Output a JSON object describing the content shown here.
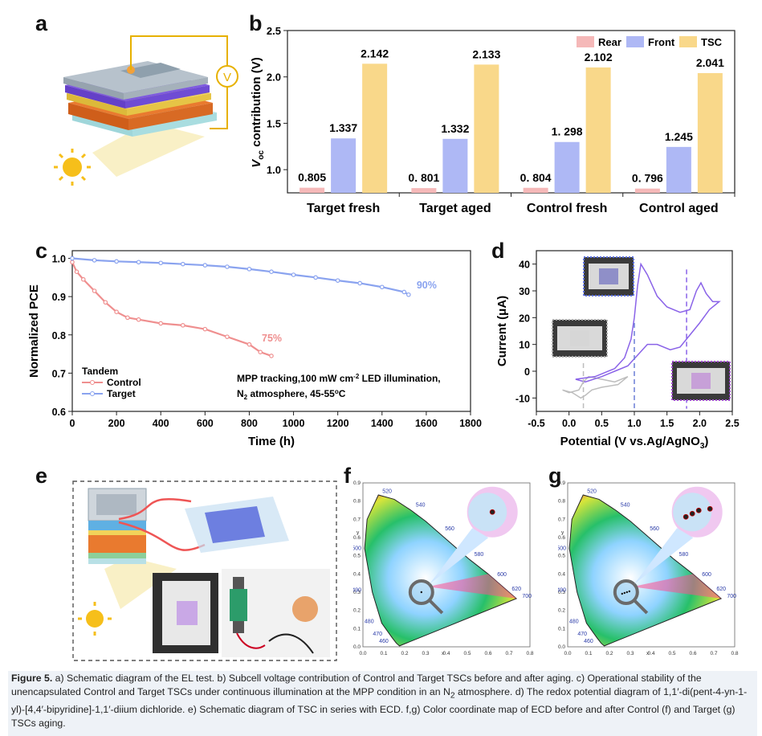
{
  "panel_labels": {
    "a": "a",
    "b": "b",
    "c": "c",
    "d": "d",
    "e": "e",
    "f": "f",
    "g": "g"
  },
  "colors": {
    "rear": "#f5b8b8",
    "front": "#aeb8f5",
    "tsc": "#f9d88a",
    "control": "#ef8f8f",
    "target": "#8aa3ef",
    "cv_gray": "#bdbdbd",
    "cv_purple": "#8a63e8"
  },
  "panel_a": {
    "voltmeter_label": "V"
  },
  "chart_data": [
    {
      "id": "b",
      "type": "bar",
      "categories": [
        "Target fresh",
        "Target aged",
        "Control fresh",
        "Control aged"
      ],
      "series": [
        {
          "name": "Rear",
          "values": [
            0.805,
            0.801,
            0.804,
            0.796
          ],
          "labels": [
            "0.805",
            "0. 801",
            "0. 804",
            "0. 796"
          ]
        },
        {
          "name": "Front",
          "values": [
            1.337,
            1.332,
            1.298,
            1.245
          ],
          "labels": [
            "1.337",
            "1.332",
            "1. 298",
            "1.245"
          ]
        },
        {
          "name": "TSC",
          "values": [
            2.142,
            2.133,
            2.102,
            2.041
          ],
          "labels": [
            "2.142",
            "2.133",
            "2.102",
            "2.041"
          ]
        }
      ],
      "ylabel": "V",
      "ylabel_sub": "oc",
      "ylabel_rest": " contribution (V)",
      "ylim": [
        0.75,
        2.5
      ],
      "yticks": [
        "1.0",
        "1.5",
        "2.0",
        "2.5"
      ],
      "legend": "top-right"
    },
    {
      "id": "c",
      "type": "line",
      "xlabel": "Time (h)",
      "ylabel": "Normalized PCE",
      "xlim": [
        0,
        1800
      ],
      "ylim": [
        0.6,
        1.02
      ],
      "xticks": [
        "0",
        "200",
        "400",
        "600",
        "800",
        "1000",
        "1200",
        "1400",
        "1600",
        "1800"
      ],
      "yticks": [
        "0.6",
        "0.7",
        "0.8",
        "0.9",
        "1.0"
      ],
      "legend_title": "Tandem",
      "annotation_line1": "MPP tracking,100 mW cm",
      "annotation_sup": "-2",
      "annotation_line1b": " LED illumination,",
      "annotation_line2": "N",
      "annotation_line2sub": "2",
      "annotation_line2b": " atmosphere, 45-55",
      "annotation_deg": "o",
      "annotation_line2c": "C",
      "series": [
        {
          "name": "Control",
          "end_label": "75%",
          "x": [
            0,
            20,
            50,
            100,
            150,
            200,
            250,
            300,
            400,
            500,
            600,
            700,
            800,
            850,
            900
          ],
          "y": [
            0.99,
            0.965,
            0.945,
            0.915,
            0.885,
            0.86,
            0.845,
            0.84,
            0.83,
            0.825,
            0.815,
            0.795,
            0.775,
            0.755,
            0.745
          ]
        },
        {
          "name": "Target",
          "end_label": "90%",
          "x": [
            0,
            100,
            200,
            300,
            400,
            500,
            600,
            700,
            800,
            900,
            1000,
            1100,
            1200,
            1300,
            1400,
            1500,
            1520
          ],
          "y": [
            1.0,
            0.995,
            0.992,
            0.99,
            0.988,
            0.985,
            0.982,
            0.978,
            0.972,
            0.965,
            0.957,
            0.95,
            0.942,
            0.935,
            0.925,
            0.912,
            0.905
          ]
        }
      ]
    },
    {
      "id": "d",
      "type": "line",
      "xlabel": "Potential (V vs.Ag/AgNO",
      "xlabel_sub": "3",
      "xlabel_end": ")",
      "ylabel": "Current (μA)",
      "xlim": [
        -0.5,
        2.5
      ],
      "ylim": [
        -15,
        45
      ],
      "xticks": [
        "-0.5",
        "0.0",
        "0.5",
        "1.0",
        "1.5",
        "2.0",
        "2.5"
      ],
      "yticks": [
        "-10",
        "0",
        "10",
        "20",
        "30",
        "40"
      ],
      "dashed_lines_x": [
        0.22,
        1.0,
        1.8
      ]
    }
  ],
  "cie": {
    "x_ticks": [
      "0.0",
      "0.1",
      "0.2",
      "0.3",
      "0.4",
      "0.5",
      "0.6",
      "0.7",
      "0.8"
    ],
    "y_ticks": [
      "0.0",
      "0.1",
      "0.2",
      "0.3",
      "0.4",
      "0.5",
      "0.6",
      "0.7",
      "0.8",
      "0.9"
    ],
    "x_axis_label": "x",
    "y_axis_label": "y",
    "wavelengths": [
      "520",
      "540",
      "560",
      "580",
      "600",
      "620",
      "700",
      "500",
      "490",
      "480",
      "470",
      "460"
    ]
  },
  "caption": {
    "figure_label": "Figure 5.",
    "text1": " a) Schematic diagram of the EL test. b) Subcell voltage contribution of Control and Target TSCs before and after aging. c) Operational stability of the unencapsulated Control and Target TSCs under continuous illumination at the MPP condition in an N",
    "sub2": "2",
    "text2": " atmosphere. d) The redox potential diagram of 1,1′-di(pent-4-yn-1-yl)-[4,4′-bipyridine]-1,1′-diium dichloride. e) Schematic diagram of TSC in series with ECD. f,g) Color coordinate map of ECD before and after Control (f) and Target (g) TSCs aging."
  }
}
